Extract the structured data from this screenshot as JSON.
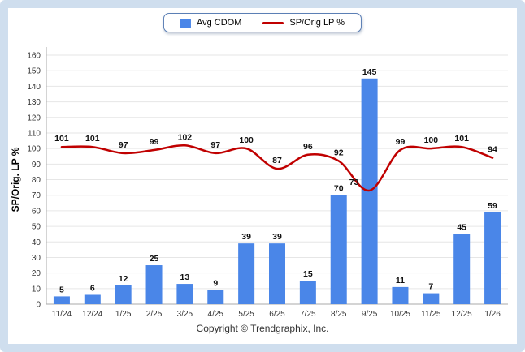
{
  "legend": {
    "bar_label": "Avg CDOM",
    "line_label": "SP/Orig LP %"
  },
  "footer": {
    "copyright": "Copyright © Trendgraphix, Inc."
  },
  "colors": {
    "bar": "#4a86e8",
    "line": "#c00000",
    "grid": "#e6e6e6",
    "axis": "#a9a9a9",
    "tick": "#333333",
    "label": "#111111",
    "frame": "#cfdeee"
  },
  "chart_data": {
    "type": "bar+line",
    "title": "",
    "categories": [
      "11/24",
      "12/24",
      "1/25",
      "2/25",
      "3/25",
      "4/25",
      "5/25",
      "6/25",
      "7/25",
      "8/25",
      "9/25",
      "10/25",
      "11/25",
      "12/25",
      "1/26"
    ],
    "series": [
      {
        "name": "Avg CDOM",
        "type": "bar",
        "values": [
          5,
          6,
          12,
          25,
          13,
          9,
          39,
          39,
          15,
          70,
          145,
          11,
          7,
          45,
          59
        ]
      },
      {
        "name": "SP/Orig LP %",
        "type": "line",
        "values": [
          101,
          101,
          97,
          99,
          102,
          97,
          100,
          87,
          96,
          92,
          73,
          99,
          100,
          101,
          94
        ]
      }
    ],
    "xlabel": "",
    "ylabel": "SP/Orig. LP %",
    "ylim": [
      0,
      160
    ],
    "ytick_step": 10,
    "grid": true,
    "legend_position": "top"
  }
}
